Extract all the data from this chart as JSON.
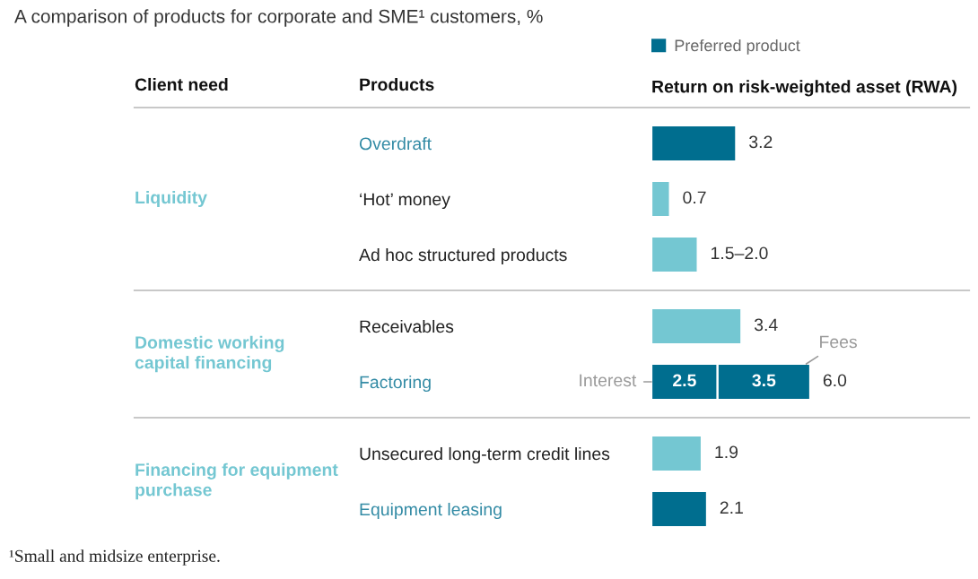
{
  "chart_data": [
    {
      "type": "bar",
      "orientation": "horizontal",
      "stacked": true,
      "title": "A comparison of products for corporate and SME¹ customers, %",
      "xlabel": "Return on risk-weighted asset (RWA)",
      "ylabel": "Liquidity",
      "legend": "top right",
      "categories": [
        "Overdraft",
        "‘Hot’ money",
        "Ad hoc structured products"
      ],
      "series": [
        {
          "name": "Preferred product",
          "color": "#006e8f",
          "values": [
            3.2,
            null,
            null
          ],
          "value_labels": [
            "3.2",
            null,
            null
          ]
        },
        {
          "color": "#74c7d2",
          "values": [
            null,
            0.7,
            1.75
          ],
          "value_labels": [
            null,
            "0.7",
            "1.5–2.0"
          ]
        }
      ],
      "annotations": [
        "Client need",
        "Products"
      ]
    },
    {
      "type": "bar",
      "orientation": "horizontal",
      "stacked": true,
      "ylabel": "Domestic working capital financing",
      "categories": [
        "Receivables",
        "Factoring"
      ],
      "series": [
        {
          "color": "#74c7d2",
          "values": [
            3.4,
            null
          ],
          "value_labels": [
            "3.4",
            null
          ]
        },
        {
          "color": "#006e8f",
          "values": [
            null,
            2.5
          ],
          "value_labels": [
            null,
            "2.5"
          ]
        },
        {
          "color": "#006e8f",
          "values": [
            null,
            3.5
          ],
          "value_labels": [
            null,
            "3.5"
          ]
        }
      ],
      "totals": [
        null,
        "6.0"
      ],
      "annotations": [
        {
          "text": "Interest",
          "x": 0,
          "y": "Factoring"
        },
        {
          "text": "Fees",
          "x": 6.0,
          "y": "Factoring"
        }
      ]
    },
    {
      "type": "bar",
      "orientation": "horizontal",
      "stacked": true,
      "ylabel": "Financing for equipment purchase",
      "categories": [
        "Unsecured long-term credit lines",
        "Equipment leasing"
      ],
      "series": [
        {
          "color": "#74c7d2",
          "values": [
            1.9,
            null
          ],
          "value_labels": [
            "1.9",
            null
          ]
        },
        {
          "color": "#006e8f",
          "values": [
            null,
            2.1
          ],
          "value_labels": [
            null,
            "2.1"
          ]
        }
      ],
      "annotations": [
        "¹Small and midsize enterprise."
      ]
    }
  ]
}
